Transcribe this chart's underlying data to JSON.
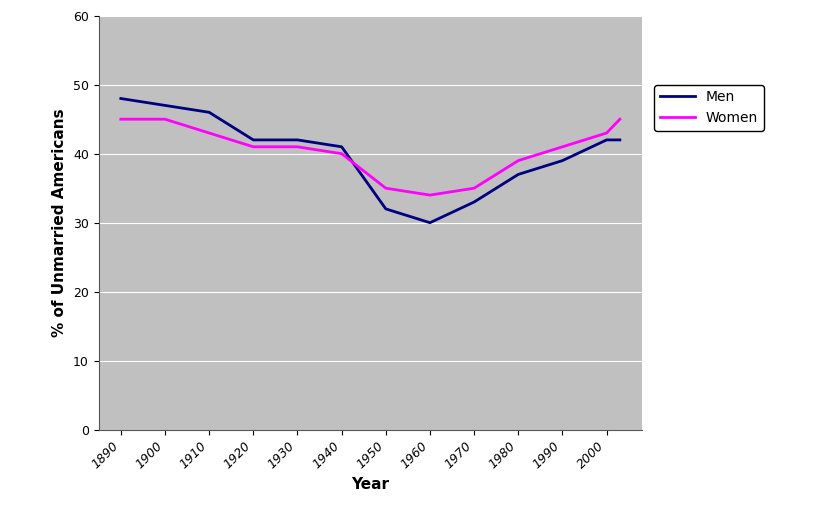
{
  "years": [
    1890,
    1900,
    1910,
    1920,
    1930,
    1940,
    1950,
    1960,
    1970,
    1980,
    1990,
    2000,
    2003
  ],
  "men": [
    48,
    47,
    46,
    42,
    42,
    41,
    32,
    30,
    33,
    37,
    39,
    42,
    42
  ],
  "women": [
    45,
    45,
    43,
    41,
    41,
    40,
    35,
    34,
    35,
    39,
    41,
    43,
    45
  ],
  "men_color": "#000080",
  "women_color": "#FF00FF",
  "plot_bg_color": "#C0C0C0",
  "fig_bg_color": "#FFFFFF",
  "ylabel": "% of Unmarried Americans",
  "xlabel": "Year",
  "legend_men": "Men",
  "legend_women": "Women",
  "ylim": [
    0,
    60
  ],
  "yticks": [
    0,
    10,
    20,
    30,
    40,
    50,
    60
  ],
  "xticks": [
    1890,
    1900,
    1910,
    1920,
    1930,
    1940,
    1950,
    1960,
    1970,
    1980,
    1990,
    2000
  ],
  "xlim_left": 1885,
  "xlim_right": 2008,
  "line_width": 2.0,
  "axis_label_fontsize": 11,
  "tick_label_fontsize": 9,
  "legend_fontsize": 10
}
